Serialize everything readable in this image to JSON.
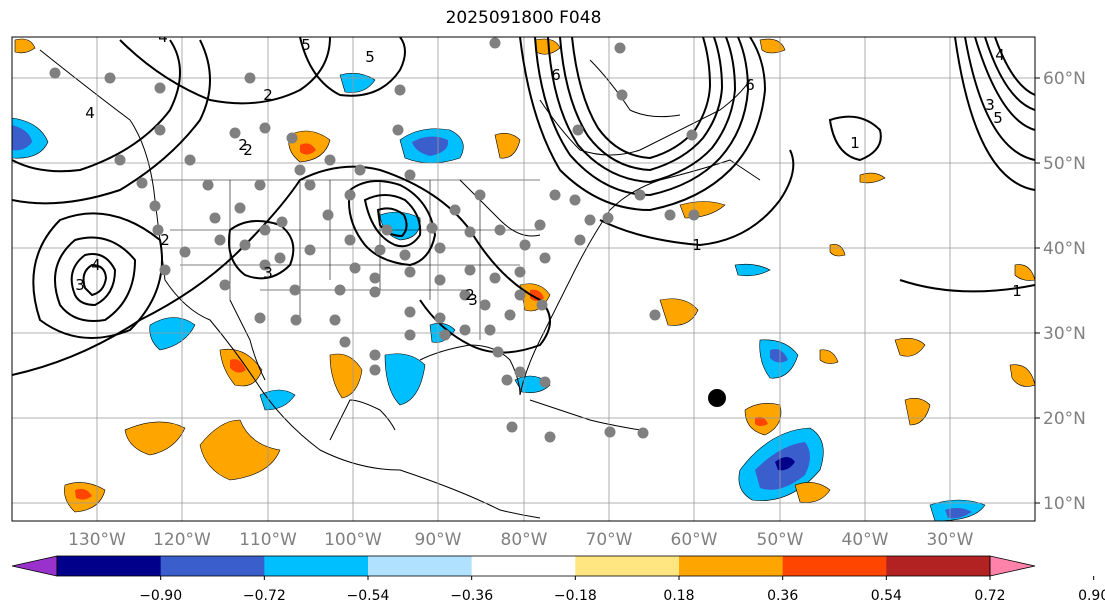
{
  "title": "2025091800 F048",
  "map": {
    "lon_range": [
      -140,
      -19
    ],
    "lat_range": [
      8,
      65
    ],
    "lon_ticks": [
      "130°W",
      "120°W",
      "110°W",
      "100°W",
      "90°W",
      "80°W",
      "70°W",
      "60°W",
      "50°W",
      "40°W",
      "30°W"
    ],
    "lat_ticks": [
      "60°N",
      "50°N",
      "40°N",
      "30°N",
      "20°N",
      "10°N"
    ],
    "grid": true,
    "contour_labels": [
      "2",
      "1",
      "1",
      "3",
      "4",
      "2",
      "4",
      "5",
      "5",
      "6",
      "1",
      "6",
      "5",
      "4",
      "3",
      "2",
      "2",
      "4",
      "3",
      "2",
      "3"
    ]
  },
  "colorbar": {
    "tick_labels": [
      "−0.90",
      "−0.72",
      "−0.54",
      "−0.36",
      "−0.18",
      "0.18",
      "0.36",
      "0.54",
      "0.72",
      "0.90"
    ],
    "colors": [
      "#9932cc",
      "#00008b",
      "#3a5fcd",
      "#00bfff",
      "#b0e2ff",
      "#ffffff",
      "#ffe680",
      "#ffa500",
      "#ff4500",
      "#b22222",
      "#ff82ab"
    ]
  }
}
